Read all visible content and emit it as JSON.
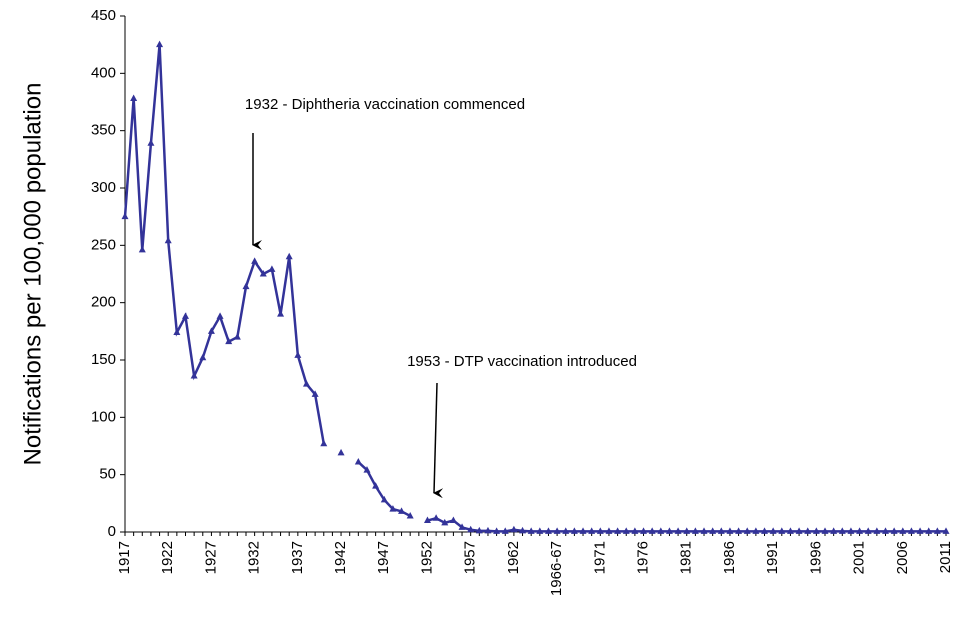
{
  "chart_data": {
    "type": "line",
    "y_label": "Notifications per 100,000 population",
    "annotations": [
      "1932 - Diphtheria vaccination commenced",
      "1953 - DTP vaccination introduced"
    ],
    "categories": [
      "1917",
      null,
      null,
      null,
      null,
      "1922",
      null,
      null,
      null,
      null,
      "1927",
      null,
      null,
      null,
      null,
      "1932",
      null,
      null,
      null,
      null,
      "1937",
      null,
      null,
      null,
      null,
      "1942",
      null,
      null,
      null,
      null,
      "1947",
      null,
      null,
      null,
      null,
      "1952",
      null,
      null,
      null,
      null,
      "1957",
      null,
      null,
      null,
      null,
      "1962",
      null,
      null,
      null,
      null,
      "1966-67",
      null,
      null,
      null,
      null,
      "1971",
      null,
      null,
      null,
      null,
      "1976",
      null,
      null,
      null,
      null,
      "1981",
      null,
      null,
      null,
      null,
      "1986",
      null,
      null,
      null,
      null,
      "1991",
      null,
      null,
      null,
      null,
      "1996",
      null,
      null,
      null,
      null,
      "2001",
      null,
      null,
      null,
      null,
      "2006",
      null,
      null,
      null,
      null,
      "2011"
    ],
    "series": [
      {
        "name": "Diphtheria",
        "color": "#333399",
        "values": [
          275,
          378,
          246,
          339,
          425,
          254,
          174,
          188,
          136,
          152,
          175,
          188,
          166,
          170,
          214,
          236,
          225,
          229,
          190,
          240,
          154,
          129,
          120,
          77,
          null,
          69,
          null,
          61,
          54,
          40,
          28,
          20,
          18,
          14,
          null,
          10,
          12,
          8,
          10,
          4,
          2,
          1,
          1,
          0.5,
          0.5,
          2,
          1,
          0.5,
          0.5,
          0.5,
          0.5,
          0.5,
          0.5,
          0.5,
          0.5,
          0.5,
          0.5,
          0.5,
          0.5,
          0.5,
          0.5,
          0.5,
          0.5,
          0.5,
          0.5,
          0.5,
          0.5,
          0.5,
          0.5,
          0.5,
          0.5,
          0.5,
          0.5,
          0.5,
          0.5,
          0.5,
          0.5,
          0.5,
          0.5,
          0.5,
          0.5,
          0.5,
          0.5,
          0.5,
          0.5,
          0.5,
          0.5,
          0.5,
          0.5,
          0.5,
          0.5,
          0.5,
          0.5,
          0.5,
          0.5,
          0.5
        ]
      }
    ],
    "ylim": [
      0,
      450
    ],
    "yticks": [
      0,
      50,
      100,
      150,
      200,
      250,
      300,
      350,
      400,
      450
    ]
  }
}
